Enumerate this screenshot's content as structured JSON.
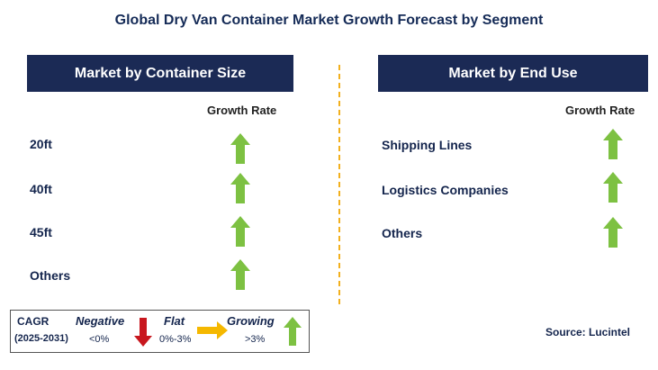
{
  "title": "Global Dry Van Container Market Growth Forecast by Segment",
  "left_panel": {
    "header": "Market by Container Size",
    "growth_label": "Growth Rate",
    "rows": [
      {
        "label": "20ft",
        "trend": "growing"
      },
      {
        "label": "40ft",
        "trend": "growing"
      },
      {
        "label": "45ft",
        "trend": "growing"
      },
      {
        "label": "Others",
        "trend": "growing"
      }
    ]
  },
  "right_panel": {
    "header": "Market by End Use",
    "growth_label": "Growth Rate",
    "rows": [
      {
        "label": "Shipping Lines",
        "trend": "growing"
      },
      {
        "label": "Logistics Companies",
        "trend": "growing"
      },
      {
        "label": "Others",
        "trend": "growing"
      }
    ]
  },
  "legend": {
    "cagr_label": "CAGR",
    "period": "(2025-2031)",
    "negative_label": "Negative",
    "negative_value": "<0%",
    "flat_label": "Flat",
    "flat_value": "0%-3%",
    "growing_label": "Growing",
    "growing_value": ">3%"
  },
  "source": "Source: Lucintel",
  "colors": {
    "header_bg": "#1b2a55",
    "growing_arrow": "#7dc142",
    "negative_arrow": "#c8171e",
    "flat_arrow": "#f5b800",
    "divider": "#f2b01e"
  }
}
